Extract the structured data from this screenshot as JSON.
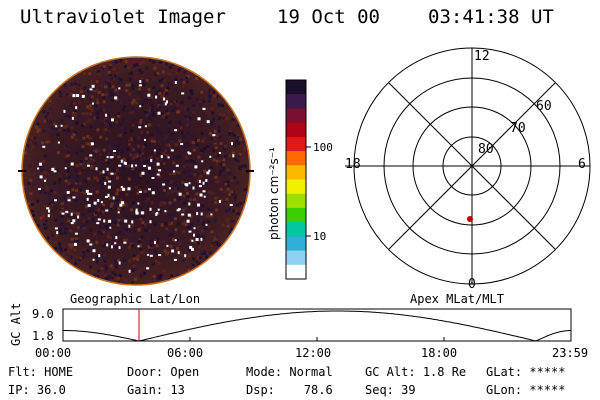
{
  "header": {
    "instrument": "Ultraviolet Imager",
    "date": "19 Oct 00",
    "time": "03:41:38 UT"
  },
  "colorbar": {
    "label": "photon cm⁻²s⁻¹",
    "ticks": [
      "100",
      "10"
    ],
    "scale": "log",
    "colors": [
      "#1a0f2a",
      "#3a1a4a",
      "#7a1030",
      "#b00018",
      "#e01818",
      "#ff6a00",
      "#ffb800",
      "#f2f200",
      "#9ae000",
      "#38d000",
      "#00c8a0",
      "#30b0d8",
      "#90d0f0",
      "#ffffff"
    ]
  },
  "polar": {
    "ring_labels": [
      "80",
      "70",
      "60"
    ],
    "mlt_labels": {
      "top": "12",
      "left": "18",
      "right": "6",
      "bottom": "0"
    },
    "marker_color": "#c00000"
  },
  "panel_labels": {
    "left": "Geographic Lat/Lon",
    "right": "Apex MLat/MLT"
  },
  "timeline": {
    "ylabel": "GC Alt",
    "y_ticks": [
      "9.0",
      "1.8"
    ],
    "x_ticks": [
      "00:00",
      "06:00",
      "12:00",
      "18:00",
      "23:59"
    ],
    "current_time_marker": "03:41",
    "marker_color": "#c00000"
  },
  "status": {
    "row1": [
      {
        "key": "Flt:",
        "value": "HOME"
      },
      {
        "key": "Door:",
        "value": "Open"
      },
      {
        "key": "Mode:",
        "value": "Normal"
      },
      {
        "key": "GC Alt:",
        "value": "1.8 Re"
      },
      {
        "key": "GLat:",
        "value": "*****"
      }
    ],
    "row2": [
      {
        "key": "IP:",
        "value": "36.0"
      },
      {
        "key": "Gain:",
        "value": "13"
      },
      {
        "key": "Dsp:",
        "value": "78.6"
      },
      {
        "key": "Seq:",
        "value": "39"
      },
      {
        "key": "GLon:",
        "value": "*****"
      }
    ]
  },
  "colors": {
    "disk_background": "#3a1a1a",
    "disk_edge": "#c87020",
    "line": "#000000"
  }
}
